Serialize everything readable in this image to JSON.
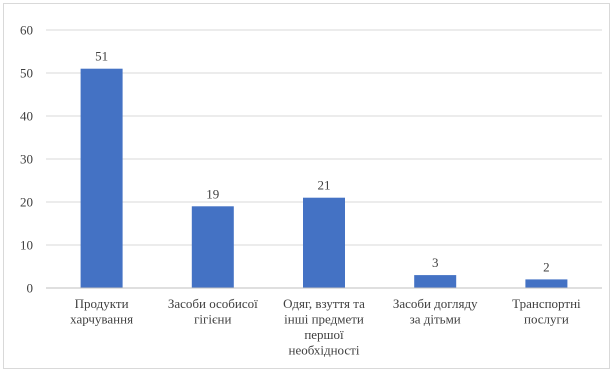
{
  "chart_data": {
    "type": "bar",
    "categories": [
      [
        "Продукти",
        "харчування"
      ],
      [
        "Засоби особисої",
        "гігієни"
      ],
      [
        "Одяг, взуття та",
        "інші предмети",
        "першої",
        "необхідності"
      ],
      [
        "Засоби догляду",
        "за дітьми"
      ],
      [
        "Транспортні",
        "послуги"
      ]
    ],
    "values": [
      51,
      19,
      21,
      3,
      2
    ],
    "data_labels": [
      "51",
      "19",
      "21",
      "3",
      "2"
    ],
    "y_ticks": [
      0,
      10,
      20,
      30,
      40,
      50,
      60
    ],
    "ylim": [
      0,
      60
    ],
    "grid": true,
    "legend": "none",
    "colors": {
      "bar": "#4472c4",
      "grid": "#d9d9d9",
      "axis": "#bfbfbf",
      "text": "#404040"
    }
  }
}
